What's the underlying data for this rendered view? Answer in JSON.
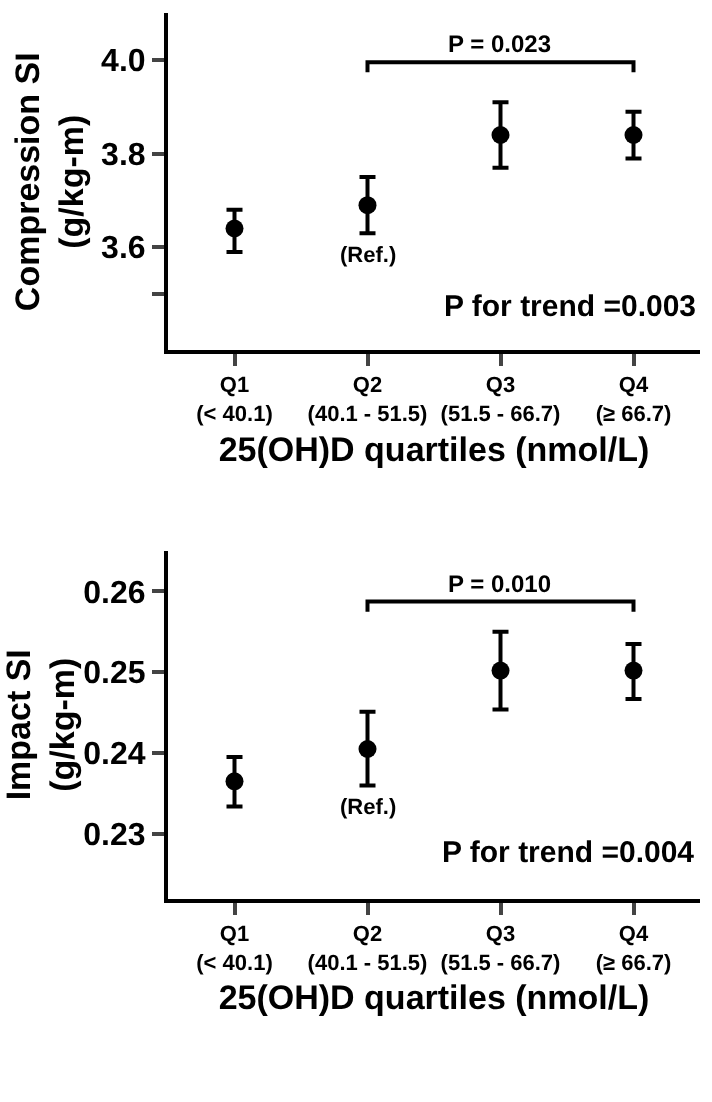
{
  "chart_data": [
    {
      "type": "scatter",
      "ylabel": "Compression SI\n(g/kg-m)",
      "xlabel": "25(OH)D quartiles (nmol/L)",
      "categories": [
        "Q1\n(< 40.1)",
        "Q2\n(40.1 - 51.5)",
        "Q3\n(51.5 - 66.7)",
        "Q4\n(≥ 66.7)"
      ],
      "values": [
        3.64,
        3.69,
        3.84,
        3.84
      ],
      "errors": [
        [
          3.59,
          3.68
        ],
        [
          3.63,
          3.75
        ],
        [
          3.77,
          3.91
        ],
        [
          3.79,
          3.89
        ]
      ],
      "color": "#000000",
      "marker": "circle",
      "ylim": [
        3.38,
        4.1
      ],
      "yticks": [
        {
          "value": 3.5,
          "label": null
        },
        3.6,
        3.8,
        {
          "value": 4.0,
          "label": "4.0"
        }
      ],
      "annotations": [
        "(Ref.)",
        "P = 0.023",
        "P for trend =0.003"
      ]
    },
    {
      "type": "scatter",
      "ylabel": "Impact SI\n(g/kg-m)",
      "xlabel": "25(OH)D quartiles (nmol/L)",
      "categories": [
        "Q1\n(< 40.1)",
        "Q2\n(40.1 - 51.5)",
        "Q3\n(51.5 - 66.7)",
        "Q4\n(≥ 66.7)"
      ],
      "values": [
        0.2365,
        0.2405,
        0.2502,
        0.2502
      ],
      "errors": [
        [
          0.2334,
          0.2395
        ],
        [
          0.236,
          0.2451
        ],
        [
          0.2454,
          0.255
        ],
        [
          0.2467,
          0.2535
        ]
      ],
      "color": "#000000",
      "marker": "circle",
      "ylim": [
        0.222,
        0.265
      ],
      "yticks": [
        0.23,
        0.24,
        0.25,
        0.26
      ],
      "annotations": [
        "(Ref.)",
        "P = 0.010",
        "P for trend =0.004"
      ]
    }
  ]
}
